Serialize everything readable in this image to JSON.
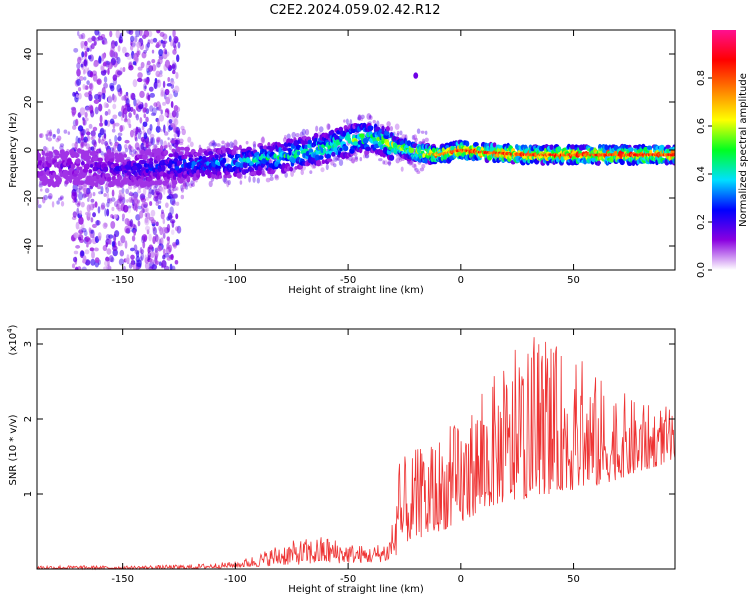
{
  "figure": {
    "title": "C2E2.2024.059.02.42.R12"
  },
  "chart_data": [
    {
      "type": "heatmap",
      "xlabel": "Height of straight line (km)",
      "ylabel": "Frequency (Hz)",
      "xlim": [
        -188,
        95
      ],
      "ylim": [
        -50,
        50
      ],
      "xticks": [
        -150,
        -100,
        -50,
        0,
        50
      ],
      "yticks": [
        -40,
        -20,
        0,
        20,
        40
      ],
      "colorbar": {
        "label": "Normalized spectral amplitude",
        "range": [
          0,
          1
        ],
        "ticks": [
          "0.0",
          "0.2",
          "0.4",
          "0.6",
          "0.8"
        ],
        "tick_values": [
          0.0,
          0.2,
          0.4,
          0.6,
          0.8
        ],
        "colormap": [
          "#ffffff",
          "#8a00e0",
          "#0000ff",
          "#00e0ff",
          "#00ff20",
          "#ffff00",
          "#ff8000",
          "#ff0000",
          "#ff1090"
        ]
      },
      "ridge": {
        "x": [
          -188,
          -170,
          -150,
          -130,
          -120,
          -100,
          -80,
          -60,
          -45,
          -38,
          -30,
          -20,
          -10,
          0,
          10,
          30,
          50,
          70,
          95
        ],
        "freq_hz": [
          -8,
          -7,
          -8,
          -7,
          -6,
          -5,
          -3,
          1,
          5,
          5,
          2,
          -1,
          -2,
          0,
          -1,
          -2,
          -2,
          -2,
          -2
        ],
        "amplitude": [
          0.15,
          0.15,
          0.2,
          0.25,
          0.3,
          0.35,
          0.45,
          0.5,
          0.55,
          0.5,
          0.6,
          0.7,
          0.75,
          0.85,
          0.85,
          0.85,
          0.85,
          0.85,
          0.85
        ]
      },
      "scatter_region": {
        "xmin": -172,
        "xmax": -125,
        "note_visible": false
      },
      "outlier_point": {
        "x": -20,
        "freq_hz": 31
      }
    },
    {
      "type": "line",
      "xlabel": "Height of straight line (km)",
      "ylabel": "SNR (10 * v/v)",
      "multiplier_label": "(x10",
      "multiplier_exp": "4",
      "multiplier_close": ")",
      "xlim": [
        -188,
        95
      ],
      "ylim": [
        0,
        3.2
      ],
      "xticks": [
        -150,
        -100,
        -50,
        0,
        50
      ],
      "yticks": [
        1,
        2,
        3
      ],
      "color": "#ee3333",
      "envelope": {
        "x": [
          -188,
          -150,
          -120,
          -100,
          -90,
          -80,
          -70,
          -60,
          -50,
          -40,
          -32,
          -28,
          -25,
          -20,
          -15,
          -10,
          -5,
          0,
          5,
          10,
          15,
          20,
          25,
          30,
          35,
          40,
          45,
          50,
          55,
          60,
          65,
          70,
          75,
          80,
          85,
          90,
          95
        ],
        "low": [
          0.0,
          0.0,
          0.0,
          0.02,
          0.03,
          0.05,
          0.06,
          0.07,
          0.08,
          0.08,
          0.1,
          0.2,
          0.35,
          0.4,
          0.45,
          0.5,
          0.55,
          0.6,
          0.7,
          0.8,
          0.85,
          0.9,
          0.9,
          0.95,
          1.0,
          1.0,
          1.05,
          1.05,
          1.1,
          1.1,
          1.15,
          1.2,
          1.25,
          1.3,
          1.35,
          1.4,
          1.45
        ],
        "high": [
          0.05,
          0.04,
          0.06,
          0.1,
          0.2,
          0.35,
          0.4,
          0.45,
          0.35,
          0.3,
          0.4,
          1.3,
          1.5,
          1.6,
          1.7,
          1.8,
          1.9,
          2.0,
          2.2,
          2.4,
          2.6,
          2.7,
          2.8,
          2.9,
          3.0,
          3.05,
          2.9,
          2.8,
          2.7,
          2.6,
          2.5,
          2.4,
          2.3,
          2.2,
          2.2,
          2.2,
          2.1
        ]
      }
    }
  ]
}
